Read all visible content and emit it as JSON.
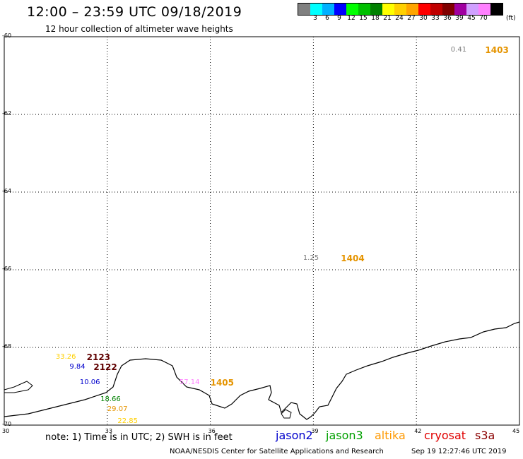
{
  "header": {
    "title": "12:00 – 23:59 UTC 09/18/2019",
    "subtitle": "12 hour collection of altimeter wave heights"
  },
  "legend": {
    "unit": "(ft)",
    "bins": [
      {
        "label": "",
        "color": "#808080"
      },
      {
        "label": "3",
        "color": "#00ffff"
      },
      {
        "label": "6",
        "color": "#00b0ff"
      },
      {
        "label": "9",
        "color": "#0000ff"
      },
      {
        "label": "12",
        "color": "#00ff00"
      },
      {
        "label": "15",
        "color": "#00c000"
      },
      {
        "label": "18",
        "color": "#008000"
      },
      {
        "label": "21",
        "color": "#ffff00"
      },
      {
        "label": "24",
        "color": "#ffd000"
      },
      {
        "label": "27",
        "color": "#ffa500"
      },
      {
        "label": "30",
        "color": "#ff0000"
      },
      {
        "label": "33",
        "color": "#c00000"
      },
      {
        "label": "36",
        "color": "#800000"
      },
      {
        "label": "39",
        "color": "#a000a0"
      },
      {
        "label": "45",
        "color": "#d0a0ff"
      },
      {
        "label": "70",
        "color": "#ff80ff"
      },
      {
        "label": "",
        "color": "#000000"
      }
    ]
  },
  "map": {
    "lon_range": [
      30,
      45
    ],
    "lat_range": [
      -70,
      -60
    ],
    "lon_ticks": [
      "30",
      "33",
      "36",
      "39",
      "42",
      "45"
    ],
    "lat_ticks": [
      "-60",
      "-62",
      "-64",
      "-66",
      "-68",
      "-70"
    ],
    "passes": [
      {
        "label": "1403",
        "lon": 44.0,
        "lat": -60.35,
        "color": "#e59400"
      },
      {
        "label": "1404",
        "lon": 39.8,
        "lat": -65.7,
        "color": "#e59400"
      },
      {
        "label": "1405",
        "lon": 36.0,
        "lat": -68.9,
        "color": "#e59400"
      },
      {
        "label": "2123",
        "lon": 32.4,
        "lat": -68.25,
        "color": "#600000"
      },
      {
        "label": "2122",
        "lon": 32.6,
        "lat": -68.5,
        "color": "#600000"
      }
    ],
    "waves": [
      {
        "value": "0.41",
        "lon": 43.0,
        "lat": -60.35,
        "color": "#808080"
      },
      {
        "value": "1.25",
        "lon": 38.7,
        "lat": -65.7,
        "color": "#808080"
      },
      {
        "value": "33.26",
        "lon": 31.5,
        "lat": -68.25,
        "color": "#ffd000"
      },
      {
        "value": "9.84",
        "lon": 31.9,
        "lat": -68.5,
        "color": "#0000cc"
      },
      {
        "value": "10.06",
        "lon": 32.2,
        "lat": -68.9,
        "color": "#0000cc"
      },
      {
        "value": "57.14",
        "lon": 35.1,
        "lat": -68.9,
        "color": "#ff80ff"
      },
      {
        "value": "18.66",
        "lon": 32.8,
        "lat": -69.35,
        "color": "#008000"
      },
      {
        "value": "29.07",
        "lon": 33.0,
        "lat": -69.6,
        "color": "#e59400"
      },
      {
        "value": "22.85",
        "lon": 33.3,
        "lat": -69.9,
        "color": "#ffd000"
      }
    ]
  },
  "footer": {
    "note": "note: 1) Time is in UTC; 2) SWH is in feet",
    "satellites": [
      {
        "name": "jason2",
        "color": "#0000cc"
      },
      {
        "name": "jason3",
        "color": "#00a000"
      },
      {
        "name": "altika",
        "color": "#ff9900"
      },
      {
        "name": "cryosat",
        "color": "#e00000"
      },
      {
        "name": "s3a",
        "color": "#8b0000"
      }
    ],
    "credit": "NOAA/NESDIS Center for Satellite Applications and Research",
    "generated": "Sep 19 12:27:46 UTC 2019"
  }
}
